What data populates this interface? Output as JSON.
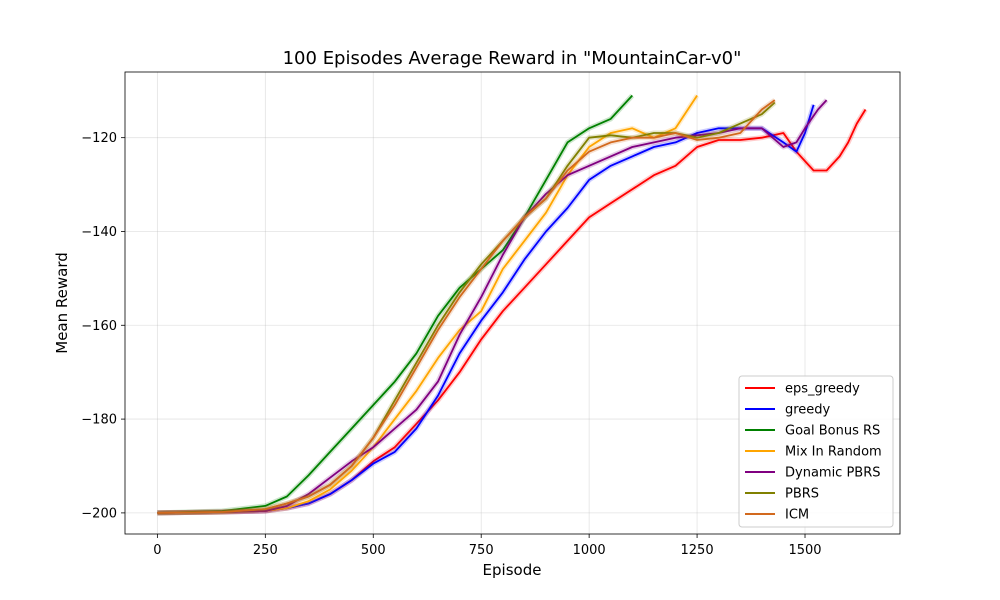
{
  "chart_data": {
    "type": "line",
    "title": "100 Episodes Average Reward in \"MountainCar-v0\"",
    "xlabel": "Episode",
    "ylabel": "Mean Reward",
    "xlim": [
      -75,
      1720
    ],
    "ylim": [
      -204.5,
      -106
    ],
    "xticks": [
      0,
      250,
      500,
      750,
      1000,
      1250,
      1500
    ],
    "yticks": [
      -200,
      -180,
      -160,
      -140,
      -120
    ],
    "xtick_labels": [
      "0",
      "250",
      "500",
      "750",
      "1000",
      "1250",
      "1500"
    ],
    "ytick_labels": [
      "−200",
      "−180",
      "−160",
      "−140",
      "−120"
    ],
    "grid": true,
    "legend_position": "bottom-right",
    "series": [
      {
        "name": "eps_greedy",
        "color": "#ff0000",
        "points": [
          [
            0,
            -200
          ],
          [
            150,
            -199.8
          ],
          [
            250,
            -199.6
          ],
          [
            300,
            -199
          ],
          [
            350,
            -198
          ],
          [
            400,
            -196
          ],
          [
            450,
            -193
          ],
          [
            500,
            -189
          ],
          [
            550,
            -186
          ],
          [
            600,
            -181
          ],
          [
            650,
            -176
          ],
          [
            700,
            -170
          ],
          [
            750,
            -163
          ],
          [
            800,
            -157
          ],
          [
            850,
            -152
          ],
          [
            900,
            -147
          ],
          [
            950,
            -142
          ],
          [
            1000,
            -137
          ],
          [
            1050,
            -134
          ],
          [
            1100,
            -131
          ],
          [
            1150,
            -128
          ],
          [
            1200,
            -126
          ],
          [
            1250,
            -122
          ],
          [
            1300,
            -120.5
          ],
          [
            1350,
            -120.5
          ],
          [
            1400,
            -120
          ],
          [
            1450,
            -119
          ],
          [
            1480,
            -123
          ],
          [
            1500,
            -125
          ],
          [
            1520,
            -127
          ],
          [
            1550,
            -127
          ],
          [
            1580,
            -124
          ],
          [
            1600,
            -121
          ],
          [
            1620,
            -117
          ],
          [
            1640,
            -114
          ]
        ]
      },
      {
        "name": "greedy",
        "color": "#0000ff",
        "points": [
          [
            0,
            -200
          ],
          [
            150,
            -199.8
          ],
          [
            250,
            -199.6
          ],
          [
            300,
            -199
          ],
          [
            350,
            -198
          ],
          [
            400,
            -196
          ],
          [
            450,
            -193
          ],
          [
            500,
            -189.5
          ],
          [
            550,
            -187
          ],
          [
            600,
            -182
          ],
          [
            650,
            -175
          ],
          [
            700,
            -166
          ],
          [
            750,
            -159
          ],
          [
            800,
            -153
          ],
          [
            850,
            -146
          ],
          [
            900,
            -140
          ],
          [
            950,
            -135
          ],
          [
            1000,
            -129
          ],
          [
            1050,
            -126
          ],
          [
            1100,
            -124
          ],
          [
            1150,
            -122
          ],
          [
            1200,
            -121
          ],
          [
            1250,
            -119
          ],
          [
            1300,
            -118
          ],
          [
            1350,
            -118
          ],
          [
            1400,
            -118
          ],
          [
            1450,
            -121
          ],
          [
            1480,
            -123
          ],
          [
            1500,
            -119
          ],
          [
            1520,
            -113
          ]
        ]
      },
      {
        "name": "Goal Bonus RS",
        "color": "#008000",
        "points": [
          [
            0,
            -200
          ],
          [
            150,
            -199.6
          ],
          [
            250,
            -198.5
          ],
          [
            300,
            -196.5
          ],
          [
            350,
            -192
          ],
          [
            400,
            -187
          ],
          [
            450,
            -182
          ],
          [
            500,
            -177
          ],
          [
            550,
            -172
          ],
          [
            600,
            -166
          ],
          [
            650,
            -158
          ],
          [
            700,
            -152
          ],
          [
            750,
            -148
          ],
          [
            800,
            -144
          ],
          [
            850,
            -137
          ],
          [
            900,
            -129
          ],
          [
            950,
            -121
          ],
          [
            1000,
            -118
          ],
          [
            1050,
            -116
          ],
          [
            1100,
            -111
          ]
        ]
      },
      {
        "name": "Mix In Random",
        "color": "#ffa500",
        "points": [
          [
            0,
            -200
          ],
          [
            150,
            -199.8
          ],
          [
            250,
            -199.6
          ],
          [
            300,
            -199
          ],
          [
            350,
            -197.5
          ],
          [
            400,
            -195
          ],
          [
            450,
            -191
          ],
          [
            500,
            -186
          ],
          [
            550,
            -180
          ],
          [
            600,
            -174
          ],
          [
            650,
            -167
          ],
          [
            700,
            -161
          ],
          [
            750,
            -157
          ],
          [
            800,
            -148
          ],
          [
            850,
            -142
          ],
          [
            900,
            -136
          ],
          [
            950,
            -128
          ],
          [
            1000,
            -122
          ],
          [
            1050,
            -119
          ],
          [
            1100,
            -118
          ],
          [
            1150,
            -120
          ],
          [
            1200,
            -118
          ],
          [
            1250,
            -111
          ]
        ]
      },
      {
        "name": "Dynamic PBRS",
        "color": "#800080",
        "points": [
          [
            0,
            -200
          ],
          [
            150,
            -199.8
          ],
          [
            250,
            -199.6
          ],
          [
            300,
            -198.5
          ],
          [
            350,
            -196
          ],
          [
            400,
            -192.5
          ],
          [
            450,
            -189
          ],
          [
            500,
            -186
          ],
          [
            550,
            -182
          ],
          [
            600,
            -178
          ],
          [
            650,
            -172
          ],
          [
            700,
            -162
          ],
          [
            750,
            -154
          ],
          [
            800,
            -145
          ],
          [
            850,
            -137
          ],
          [
            900,
            -132
          ],
          [
            950,
            -128
          ],
          [
            1000,
            -126
          ],
          [
            1050,
            -124
          ],
          [
            1100,
            -122
          ],
          [
            1150,
            -121
          ],
          [
            1200,
            -120
          ],
          [
            1250,
            -119.5
          ],
          [
            1300,
            -119
          ],
          [
            1350,
            -118
          ],
          [
            1400,
            -118
          ],
          [
            1450,
            -122
          ],
          [
            1480,
            -121
          ],
          [
            1500,
            -118
          ],
          [
            1530,
            -114
          ],
          [
            1550,
            -112
          ]
        ]
      },
      {
        "name": "PBRS",
        "color": "#808000",
        "points": [
          [
            0,
            -200
          ],
          [
            150,
            -199.8
          ],
          [
            250,
            -199.2
          ],
          [
            300,
            -198
          ],
          [
            350,
            -196.5
          ],
          [
            400,
            -194
          ],
          [
            450,
            -190
          ],
          [
            500,
            -184
          ],
          [
            550,
            -176
          ],
          [
            600,
            -168
          ],
          [
            650,
            -160
          ],
          [
            700,
            -153
          ],
          [
            750,
            -147
          ],
          [
            800,
            -142
          ],
          [
            850,
            -137
          ],
          [
            900,
            -133
          ],
          [
            950,
            -126
          ],
          [
            1000,
            -120
          ],
          [
            1050,
            -119.5
          ],
          [
            1100,
            -120
          ],
          [
            1150,
            -119
          ],
          [
            1200,
            -119
          ],
          [
            1250,
            -120
          ],
          [
            1300,
            -119
          ],
          [
            1350,
            -117
          ],
          [
            1400,
            -115
          ],
          [
            1430,
            -112.5
          ]
        ]
      },
      {
        "name": "ICM",
        "color": "#d2691e",
        "points": [
          [
            0,
            -200
          ],
          [
            150,
            -199.8
          ],
          [
            250,
            -199.2
          ],
          [
            300,
            -198
          ],
          [
            350,
            -196.5
          ],
          [
            400,
            -194
          ],
          [
            450,
            -190
          ],
          [
            500,
            -184
          ],
          [
            550,
            -177
          ],
          [
            600,
            -169
          ],
          [
            650,
            -161
          ],
          [
            700,
            -154
          ],
          [
            750,
            -148
          ],
          [
            800,
            -142
          ],
          [
            850,
            -137
          ],
          [
            900,
            -133
          ],
          [
            950,
            -127
          ],
          [
            1000,
            -123
          ],
          [
            1050,
            -121
          ],
          [
            1100,
            -120
          ],
          [
            1150,
            -120
          ],
          [
            1200,
            -119
          ],
          [
            1250,
            -120.5
          ],
          [
            1300,
            -120
          ],
          [
            1350,
            -119
          ],
          [
            1400,
            -114
          ],
          [
            1430,
            -112
          ]
        ]
      }
    ]
  }
}
